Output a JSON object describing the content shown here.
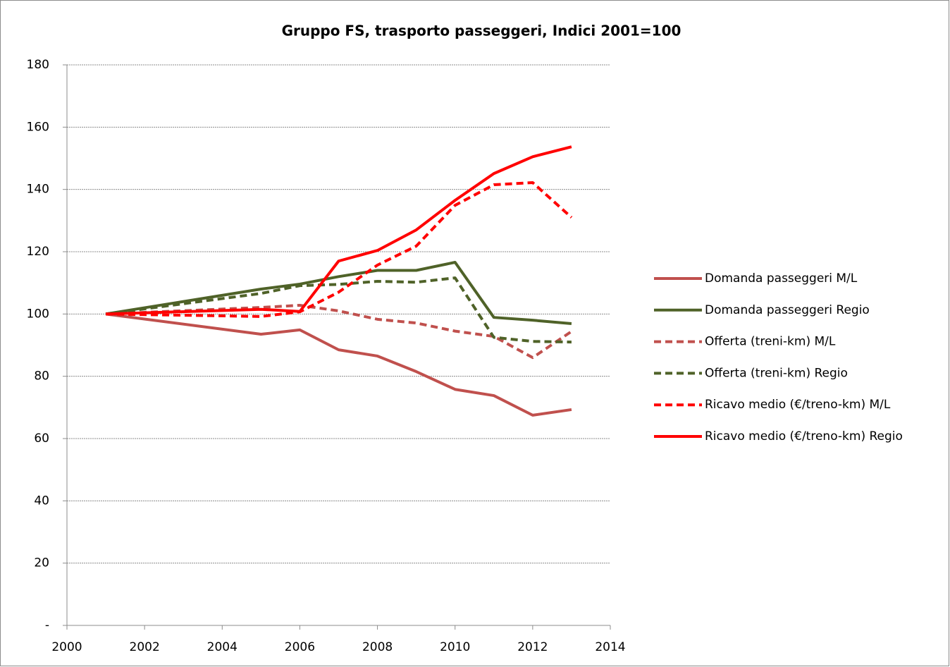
{
  "chart_data": {
    "type": "line",
    "title": "Gruppo FS, trasporto passeggeri, Indici 2001=100",
    "x": [
      2001,
      2005,
      2006,
      2007,
      2008,
      2009,
      2010,
      2011,
      2012,
      2013
    ],
    "series": [
      {
        "name": "Domanda passeggeri M/L",
        "color": "#c0504d",
        "dash": false,
        "values": [
          100,
          93.5,
          94.9,
          88.5,
          86.5,
          81.5,
          75.8,
          73.8,
          67.5,
          69.3
        ]
      },
      {
        "name": "Domanda passeggeri Regio",
        "color": "#4f6228",
        "dash": false,
        "values": [
          100,
          108,
          109.6,
          112,
          114,
          114,
          116.6,
          98.9,
          98,
          96.9
        ]
      },
      {
        "name": "Offerta (treni-km) M/L",
        "color": "#c0504d",
        "dash": true,
        "values": [
          100,
          102.1,
          102.8,
          101,
          98.3,
          97.1,
          94.5,
          92.8,
          86,
          94.4
        ]
      },
      {
        "name": "Offerta (treni-km) Regio",
        "color": "#4f6228",
        "dash": true,
        "values": [
          100,
          106.6,
          109.1,
          109.5,
          110.5,
          110.2,
          111.6,
          92.5,
          91.2,
          91
        ]
      },
      {
        "name": "Ricavo medio (€/treno-km) M/L",
        "color": "#ff0000",
        "dash": true,
        "values": [
          100,
          99.2,
          100.7,
          107,
          115.7,
          121.8,
          134.9,
          141.5,
          142.2,
          131
        ]
      },
      {
        "name": "Ricavo medio (€/treno-km) Regio",
        "color": "#ff0000",
        "dash": false,
        "values": [
          100,
          101.5,
          100.8,
          117,
          120.4,
          127,
          136.5,
          145.1,
          150.5,
          153.7
        ]
      }
    ],
    "xlim": [
      2000,
      2014
    ],
    "xticks": [
      2000,
      2002,
      2004,
      2006,
      2008,
      2010,
      2012,
      2014
    ],
    "ylim": [
      0,
      180
    ],
    "yticks": [
      {
        "value": 0,
        "label": "-"
      },
      20,
      40,
      60,
      80,
      100,
      120,
      140,
      160,
      180
    ],
    "grid": true,
    "legend": "right"
  }
}
